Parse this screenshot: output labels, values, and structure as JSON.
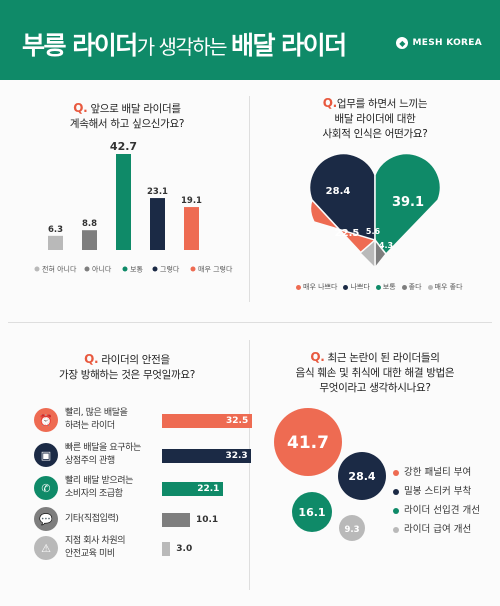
{
  "header": {
    "title_bold_1": "부릉 라이더",
    "title_light": "가 생각하는 ",
    "title_bold_2": "배달 라이더",
    "brand": "MESH KOREA",
    "brand_icon": "mesh-korea-logo-icon"
  },
  "colors": {
    "green": "#0f8a68",
    "navy": "#1b2a45",
    "coral": "#ee6b52",
    "gray_dark": "#7e7e7e",
    "gray_light": "#b9b9b9"
  },
  "q1": {
    "q_mark": "Q.",
    "line1": " 앞으로 배달 라이더를",
    "line2": "계속해서 하고 싶으신가요?"
  },
  "q2": {
    "q_mark": "Q.",
    "line1": "업무를 하면서 느끼는",
    "line2": "배달 라이더에 대한",
    "line3": "사회적 인식은 어떤가요?"
  },
  "q3": {
    "q_mark": "Q.",
    "line1": " 라이더의 안전을",
    "line2": "가장 방해하는 것은 무엇일까요?"
  },
  "q4": {
    "q_mark": "Q.",
    "line1": " 최근 논란이 된 라이더들의",
    "line2": "음식 훼손 및 취식에 대한 해결 방법은",
    "line3": "무엇이라고 생각하시나요?"
  },
  "chart_data": [
    {
      "type": "bar",
      "categories": [
        "전혀 아니다",
        "아니다",
        "보통",
        "그렇다",
        "매우 그렇다"
      ],
      "values": [
        6.3,
        8.8,
        42.7,
        23.1,
        19.1
      ],
      "value_labels": [
        "6.3",
        "8.8",
        "42.7",
        "23.1",
        "19.1"
      ],
      "colors": [
        "#b9b9b9",
        "#7e7e7e",
        "#0f8a68",
        "#1b2a45",
        "#ee6b52"
      ],
      "legend_position": "bottom",
      "grid": false
    },
    {
      "type": "pie",
      "shape": "heart",
      "categories": [
        "매우 나쁘다",
        "나쁘다",
        "보통",
        "좋다",
        "매우 좋다"
      ],
      "values": [
        22.5,
        28.4,
        39.1,
        4.3,
        5.6
      ],
      "value_labels": [
        "22.5",
        "28.4",
        "39.1",
        "4.3",
        "5.6"
      ],
      "colors": [
        "#ee6b52",
        "#1b2a45",
        "#0f8a68",
        "#7e7e7e",
        "#b9b9b9"
      ],
      "legend_position": "bottom"
    },
    {
      "type": "bar",
      "orientation": "horizontal",
      "categories": [
        "빨리, 많은 배달을 하려는 라이더",
        "빠른 배달을 요구하는 상점주의 관행",
        "빨리 배달 받으려는 소비자의 조급함",
        "기타(직접입력)",
        "지점 회사 차원의 안전교육 미비"
      ],
      "category_lines": [
        [
          "빨리, 많은 배달을",
          "하려는 라이더"
        ],
        [
          "빠른 배달을 요구하는",
          "상점주의 관행"
        ],
        [
          "빨리 배달 받으려는",
          "소비자의 조급함"
        ],
        [
          "기타(직접입력)"
        ],
        [
          "지점 회사 차원의",
          "안전교육 미비"
        ]
      ],
      "values": [
        32.5,
        32.3,
        22.1,
        10.1,
        3.0
      ],
      "value_labels": [
        "32.5",
        "32.3",
        "22.1",
        "10.1",
        "3.0"
      ],
      "colors": [
        "#ee6b52",
        "#1b2a45",
        "#0f8a68",
        "#7e7e7e",
        "#b9b9b9"
      ],
      "icons": [
        "alarm-clock-icon",
        "store-icon",
        "phone-call-icon",
        "speech-bubble-icon",
        "warning-icon"
      ]
    },
    {
      "type": "scatter",
      "style": "bubble",
      "categories": [
        "강한 패널티 부여",
        "밀봉 스티커 부착",
        "라이더 선입견 개선",
        "라이더 급여 개선"
      ],
      "values": [
        41.7,
        28.4,
        16.1,
        9.3
      ],
      "value_labels": [
        "41.7",
        "28.4",
        "16.1",
        "9.3"
      ],
      "colors": [
        "#ee6b52",
        "#1b2a45",
        "#0f8a68",
        "#b9b9b9"
      ],
      "legend_position": "right"
    }
  ]
}
